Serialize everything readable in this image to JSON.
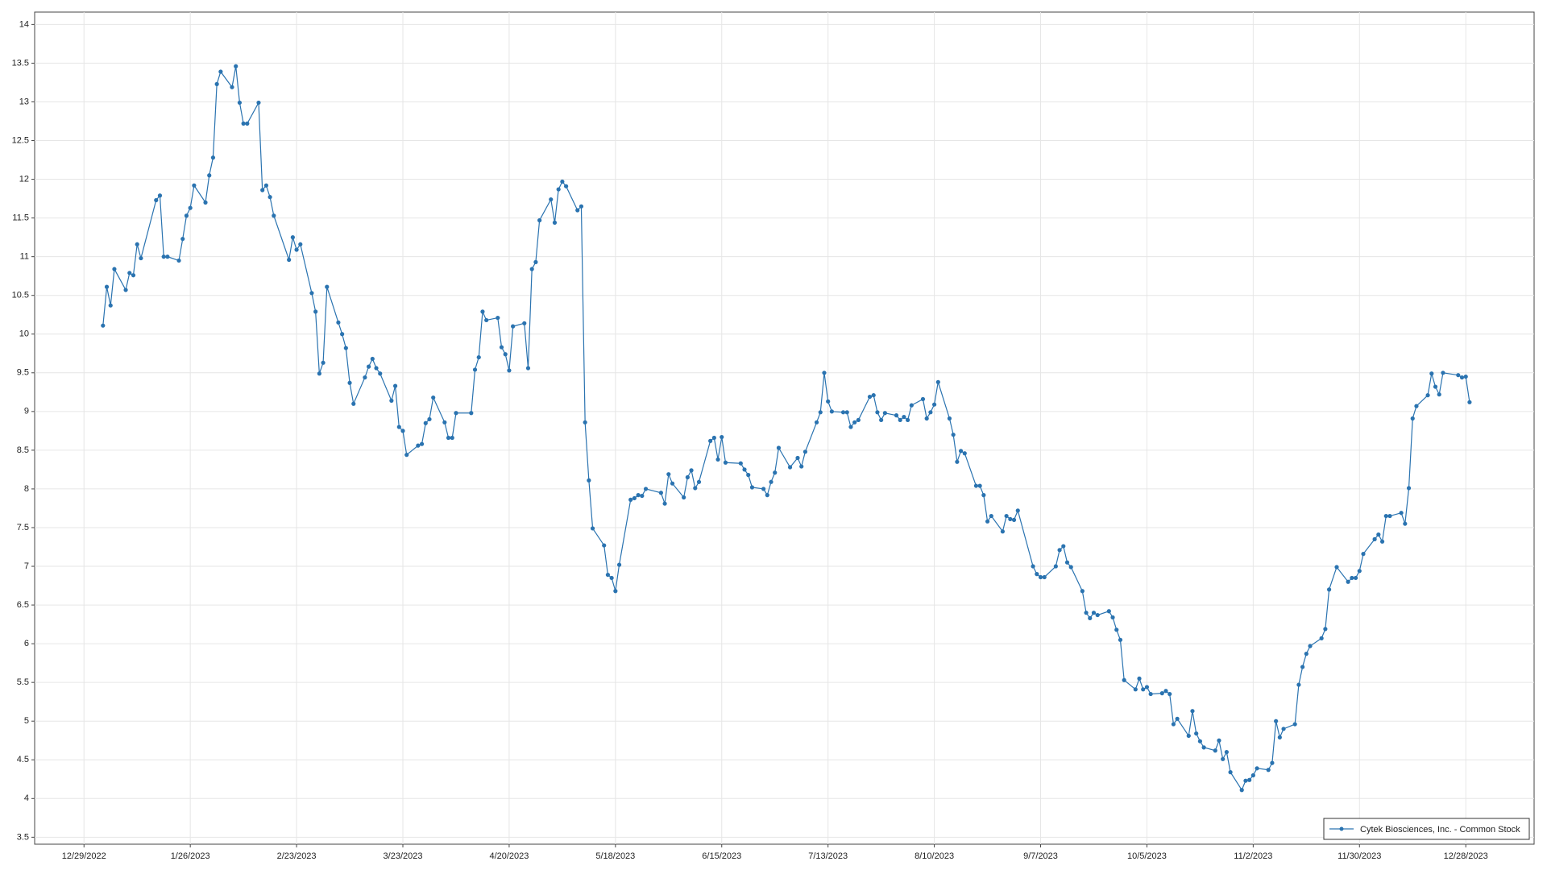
{
  "chart_data": {
    "type": "line",
    "x": [
      "1/3/2023",
      "1/4/2023",
      "1/5/2023",
      "1/6/2023",
      "1/9/2023",
      "1/10/2023",
      "1/11/2023",
      "1/12/2023",
      "1/13/2023",
      "1/17/2023",
      "1/18/2023",
      "1/19/2023",
      "1/20/2023",
      "1/23/2023",
      "1/24/2023",
      "1/25/2023",
      "1/26/2023",
      "1/27/2023",
      "1/30/2023",
      "1/31/2023",
      "2/1/2023",
      "2/2/2023",
      "2/3/2023",
      "2/6/2023",
      "2/7/2023",
      "2/8/2023",
      "2/9/2023",
      "2/10/2023",
      "2/13/2023",
      "2/14/2023",
      "2/15/2023",
      "2/16/2023",
      "2/17/2023",
      "2/21/2023",
      "2/22/2023",
      "2/23/2023",
      "2/24/2023",
      "2/27/2023",
      "2/28/2023",
      "3/1/2023",
      "3/2/2023",
      "3/3/2023",
      "3/6/2023",
      "3/7/2023",
      "3/8/2023",
      "3/9/2023",
      "3/10/2023",
      "3/13/2023",
      "3/14/2023",
      "3/15/2023",
      "3/16/2023",
      "3/17/2023",
      "3/20/2023",
      "3/21/2023",
      "3/22/2023",
      "3/23/2023",
      "3/24/2023",
      "3/27/2023",
      "3/28/2023",
      "3/29/2023",
      "3/30/2023",
      "3/31/2023",
      "4/3/2023",
      "4/4/2023",
      "4/5/2023",
      "4/6/2023",
      "4/10/2023",
      "4/11/2023",
      "4/12/2023",
      "4/13/2023",
      "4/14/2023",
      "4/17/2023",
      "4/18/2023",
      "4/19/2023",
      "4/20/2023",
      "4/21/2023",
      "4/24/2023",
      "4/25/2023",
      "4/26/2023",
      "4/27/2023",
      "4/28/2023",
      "5/1/2023",
      "5/2/2023",
      "5/3/2023",
      "5/4/2023",
      "5/5/2023",
      "5/8/2023",
      "5/9/2023",
      "5/10/2023",
      "5/11/2023",
      "5/12/2023",
      "5/15/2023",
      "5/16/2023",
      "5/17/2023",
      "5/18/2023",
      "5/19/2023",
      "5/22/2023",
      "5/23/2023",
      "5/24/2023",
      "5/25/2023",
      "5/26/2023",
      "5/30/2023",
      "5/31/2023",
      "6/1/2023",
      "6/2/2023",
      "6/5/2023",
      "6/6/2023",
      "6/7/2023",
      "6/8/2023",
      "6/9/2023",
      "6/12/2023",
      "6/13/2023",
      "6/14/2023",
      "6/15/2023",
      "6/16/2023",
      "6/20/2023",
      "6/21/2023",
      "6/22/2023",
      "6/23/2023",
      "6/26/2023",
      "6/27/2023",
      "6/28/2023",
      "6/29/2023",
      "6/30/2023",
      "7/3/2023",
      "7/5/2023",
      "7/6/2023",
      "7/7/2023",
      "7/10/2023",
      "7/11/2023",
      "7/12/2023",
      "7/13/2023",
      "7/14/2023",
      "7/17/2023",
      "7/18/2023",
      "7/19/2023",
      "7/20/2023",
      "7/21/2023",
      "7/24/2023",
      "7/25/2023",
      "7/26/2023",
      "7/27/2023",
      "7/28/2023",
      "7/31/2023",
      "8/1/2023",
      "8/2/2023",
      "8/3/2023",
      "8/4/2023",
      "8/7/2023",
      "8/8/2023",
      "8/9/2023",
      "8/10/2023",
      "8/11/2023",
      "8/14/2023",
      "8/15/2023",
      "8/16/2023",
      "8/17/2023",
      "8/18/2023",
      "8/21/2023",
      "8/22/2023",
      "8/23/2023",
      "8/24/2023",
      "8/25/2023",
      "8/28/2023",
      "8/29/2023",
      "8/30/2023",
      "8/31/2023",
      "9/1/2023",
      "9/5/2023",
      "9/6/2023",
      "9/7/2023",
      "9/8/2023",
      "9/11/2023",
      "9/12/2023",
      "9/13/2023",
      "9/14/2023",
      "9/15/2023",
      "9/18/2023",
      "9/19/2023",
      "9/20/2023",
      "9/21/2023",
      "9/22/2023",
      "9/25/2023",
      "9/26/2023",
      "9/27/2023",
      "9/28/2023",
      "9/29/2023",
      "10/2/2023",
      "10/3/2023",
      "10/4/2023",
      "10/5/2023",
      "10/6/2023",
      "10/9/2023",
      "10/10/2023",
      "10/11/2023",
      "10/12/2023",
      "10/13/2023",
      "10/16/2023",
      "10/17/2023",
      "10/18/2023",
      "10/19/2023",
      "10/20/2023",
      "10/23/2023",
      "10/24/2023",
      "10/25/2023",
      "10/26/2023",
      "10/27/2023",
      "10/30/2023",
      "10/31/2023",
      "11/1/2023",
      "11/2/2023",
      "11/3/2023",
      "11/6/2023",
      "11/7/2023",
      "11/8/2023",
      "11/9/2023",
      "11/10/2023",
      "11/13/2023",
      "11/14/2023",
      "11/15/2023",
      "11/16/2023",
      "11/17/2023",
      "11/20/2023",
      "11/21/2023",
      "11/22/2023",
      "11/24/2023",
      "11/27/2023",
      "11/28/2023",
      "11/29/2023",
      "11/30/2023",
      "12/1/2023",
      "12/4/2023",
      "12/5/2023",
      "12/6/2023",
      "12/7/2023",
      "12/8/2023",
      "12/11/2023",
      "12/12/2023",
      "12/13/2023",
      "12/14/2023",
      "12/15/2023",
      "12/18/2023",
      "12/19/2023",
      "12/20/2023",
      "12/21/2023",
      "12/22/2023",
      "12/26/2023",
      "12/27/2023",
      "12/28/2023",
      "12/29/2023"
    ],
    "series": [
      {
        "name": "Cytek Biosciences, Inc. - Common Stock",
        "color": "#2a73b0",
        "values": [
          10.11,
          10.61,
          10.37,
          10.84,
          10.57,
          10.79,
          10.76,
          11.16,
          10.98,
          11.73,
          11.79,
          11.0,
          11.0,
          10.95,
          11.23,
          11.53,
          11.63,
          11.92,
          11.7,
          12.05,
          12.28,
          13.23,
          13.39,
          13.19,
          13.46,
          12.99,
          12.72,
          12.72,
          12.99,
          11.86,
          11.92,
          11.77,
          11.53,
          10.96,
          11.25,
          11.09,
          11.16,
          10.53,
          10.29,
          9.49,
          9.63,
          10.61,
          10.15,
          10.0,
          9.82,
          9.37,
          9.1,
          9.44,
          9.58,
          9.68,
          9.56,
          9.49,
          9.14,
          9.33,
          8.8,
          8.75,
          8.44,
          8.56,
          8.58,
          8.85,
          8.9,
          9.18,
          8.86,
          8.66,
          8.66,
          8.98,
          8.98,
          9.54,
          9.7,
          10.29,
          10.18,
          10.21,
          9.83,
          9.74,
          9.53,
          10.1,
          10.14,
          9.56,
          10.84,
          10.93,
          11.47,
          11.74,
          11.44,
          11.87,
          11.97,
          11.91,
          11.6,
          11.65,
          8.86,
          8.11,
          7.49,
          7.27,
          6.89,
          6.85,
          6.68,
          7.02,
          7.86,
          7.88,
          7.92,
          7.91,
          8.0,
          7.95,
          7.81,
          8.19,
          8.07,
          7.89,
          8.15,
          8.24,
          8.01,
          8.09,
          8.62,
          8.66,
          8.38,
          8.67,
          8.34,
          8.33,
          8.25,
          8.18,
          8.02,
          8.0,
          7.92,
          8.09,
          8.21,
          8.53,
          8.28,
          8.4,
          8.29,
          8.48,
          8.86,
          8.99,
          9.5,
          9.13,
          9.0,
          8.99,
          8.99,
          8.8,
          8.86,
          8.89,
          9.19,
          9.21,
          8.99,
          8.89,
          8.98,
          8.95,
          8.89,
          8.93,
          8.89,
          9.08,
          9.16,
          8.91,
          8.99,
          9.09,
          9.38,
          8.91,
          8.7,
          8.35,
          8.49,
          8.46,
          8.04,
          8.04,
          7.92,
          7.58,
          7.65,
          7.45,
          7.65,
          7.61,
          7.6,
          7.72,
          7.0,
          6.9,
          6.86,
          6.86,
          7.0,
          7.21,
          7.26,
          7.05,
          6.99,
          6.68,
          6.4,
          6.33,
          6.4,
          6.37,
          6.42,
          6.34,
          6.18,
          6.05,
          5.53,
          5.41,
          5.55,
          5.41,
          5.44,
          5.35,
          5.36,
          5.39,
          5.35,
          4.96,
          5.03,
          4.81,
          5.13,
          4.84,
          4.74,
          4.66,
          4.62,
          4.75,
          4.51,
          4.6,
          4.34,
          4.11,
          4.23,
          4.24,
          4.3,
          4.39,
          4.37,
          4.46,
          5.0,
          4.79,
          4.9,
          4.96,
          5.47,
          5.7,
          5.87,
          5.97,
          6.07,
          6.19,
          6.7,
          6.99,
          6.8,
          6.85,
          6.85,
          6.94,
          7.16,
          7.35,
          7.41,
          7.32,
          7.65,
          7.65,
          7.69,
          7.55,
          8.01,
          8.91,
          9.07,
          9.21,
          9.49,
          9.32,
          9.22,
          9.5,
          9.47,
          9.44,
          9.45,
          9.12
        ]
      }
    ],
    "xlim": [
      "12/16/2022",
      "1/15/2024"
    ],
    "xticks": [
      "12/29/2022",
      "1/26/2023",
      "2/23/2023",
      "3/23/2023",
      "4/20/2023",
      "5/18/2023",
      "6/15/2023",
      "7/13/2023",
      "8/10/2023",
      "9/7/2023",
      "10/5/2023",
      "11/2/2023",
      "11/30/2023",
      "12/28/2023"
    ],
    "ylim": [
      3.41,
      14.16
    ],
    "yticks": [
      3.5,
      4,
      4.5,
      5,
      5.5,
      6,
      6.5,
      7,
      7.5,
      8,
      8.5,
      9,
      9.5,
      10,
      10.5,
      11,
      11.5,
      12,
      12.5,
      13,
      13.5,
      14
    ],
    "grid": true,
    "legend": "lower right"
  }
}
